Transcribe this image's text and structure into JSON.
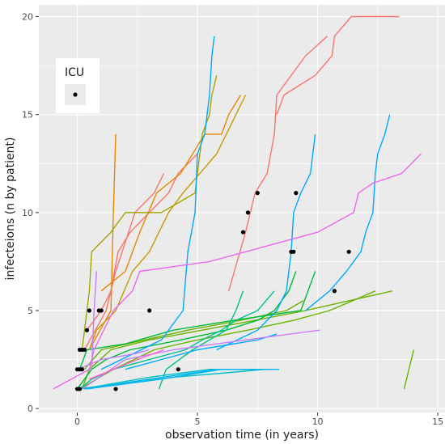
{
  "chart_data": {
    "type": "line",
    "xlabel": "observation time (in years)",
    "ylabel": "infecteions (n by patient)",
    "xlim": [
      -1.6,
      15.3
    ],
    "ylim": [
      -0.2,
      20.6
    ],
    "x_ticks": [
      0,
      5,
      10,
      15
    ],
    "y_ticks": [
      0,
      5,
      10,
      15,
      20
    ],
    "x_tick_labels": [
      "0",
      "5",
      "10",
      "15"
    ],
    "y_tick_labels": [
      "0",
      "5",
      "10",
      "15",
      "20"
    ],
    "grid": true,
    "background": "#ebebeb",
    "legend": {
      "title": "ICU",
      "position": "top-left-inside",
      "marker_color": "#000000"
    },
    "series": [
      {
        "color": "#F8766D",
        "points": [
          [
            8.3,
            15
          ],
          [
            8.6,
            16
          ],
          [
            9.9,
            17
          ],
          [
            10.6,
            18
          ],
          [
            10.7,
            19
          ],
          [
            11.4,
            20
          ],
          [
            13.4,
            20
          ]
        ]
      },
      {
        "color": "#F8766D",
        "points": [
          [
            6.3,
            6
          ],
          [
            7.0,
            9
          ],
          [
            7.4,
            11
          ],
          [
            7.9,
            12
          ],
          [
            8.2,
            14
          ],
          [
            8.3,
            16
          ],
          [
            9.5,
            18
          ],
          [
            10.4,
            19
          ]
        ]
      },
      {
        "color": "#F8766D",
        "points": [
          [
            0.3,
            3
          ],
          [
            1.2,
            5
          ],
          [
            1.6,
            7
          ],
          [
            2.4,
            10
          ],
          [
            3.2,
            11
          ],
          [
            3.6,
            12
          ]
        ]
      },
      {
        "color": "#F8766D",
        "points": [
          [
            0.4,
            4
          ],
          [
            1.0,
            5
          ],
          [
            1.4,
            6
          ],
          [
            1.7,
            8
          ],
          [
            2.2,
            9
          ],
          [
            3.0,
            10
          ],
          [
            3.8,
            11
          ],
          [
            4.2,
            12
          ],
          [
            5.0,
            13
          ]
        ]
      },
      {
        "color": "#E58700",
        "points": [
          [
            0.5,
            3
          ],
          [
            1.4,
            5
          ],
          [
            1.5,
            10
          ],
          [
            1.6,
            14
          ]
        ]
      },
      {
        "color": "#E58700",
        "points": [
          [
            1.0,
            6
          ],
          [
            2.0,
            7
          ],
          [
            2.6,
            9
          ],
          [
            3.3,
            11
          ],
          [
            4.3,
            12
          ],
          [
            4.8,
            13
          ],
          [
            5.3,
            14
          ],
          [
            6.0,
            14
          ],
          [
            6.3,
            15
          ],
          [
            6.8,
            16
          ]
        ]
      },
      {
        "color": "#C99800",
        "points": [
          [
            0.5,
            3
          ],
          [
            0.8,
            4
          ],
          [
            1.6,
            5
          ],
          [
            2.3,
            7
          ],
          [
            3.0,
            8
          ],
          [
            3.8,
            10
          ],
          [
            4.4,
            11
          ],
          [
            5.1,
            12
          ],
          [
            5.8,
            13
          ],
          [
            6.2,
            14
          ],
          [
            7.0,
            16
          ]
        ]
      },
      {
        "color": "#A3A500",
        "points": [
          [
            0.2,
            3
          ],
          [
            0.5,
            6
          ],
          [
            0.6,
            8
          ],
          [
            1.4,
            9
          ],
          [
            2.0,
            10
          ],
          [
            3.5,
            10
          ],
          [
            4.9,
            11
          ],
          [
            5.2,
            14
          ],
          [
            5.5,
            15
          ],
          [
            5.6,
            16
          ],
          [
            5.8,
            17
          ]
        ]
      },
      {
        "color": "#6BB100",
        "points": [
          [
            0.1,
            1
          ],
          [
            1.5,
            2
          ],
          [
            3.2,
            3
          ],
          [
            5.0,
            3.5
          ],
          [
            7.1,
            4
          ],
          [
            9.0,
            4.5
          ],
          [
            10.5,
            5
          ],
          [
            12.4,
            6
          ]
        ]
      },
      {
        "color": "#6BB100",
        "points": [
          [
            0.2,
            1
          ],
          [
            0.5,
            2
          ],
          [
            1.4,
            3
          ],
          [
            3.0,
            3.5
          ],
          [
            5.2,
            4
          ],
          [
            7.4,
            4.5
          ],
          [
            9.5,
            5
          ],
          [
            13.1,
            6
          ]
        ]
      },
      {
        "color": "#6BB100",
        "points": [
          [
            0.3,
            2
          ],
          [
            1.0,
            3
          ],
          [
            2.8,
            3.5
          ],
          [
            4.6,
            4
          ],
          [
            6.8,
            4.5
          ],
          [
            8.7,
            5
          ],
          [
            9.4,
            5.5
          ]
        ]
      },
      {
        "color": "#6BB100",
        "points": [
          [
            13.6,
            1
          ],
          [
            13.8,
            2
          ],
          [
            14.0,
            3
          ]
        ]
      },
      {
        "color": "#00BA38",
        "points": [
          [
            0.1,
            2
          ],
          [
            0.4,
            3
          ],
          [
            2.0,
            3.3
          ],
          [
            4.0,
            4
          ],
          [
            6.5,
            4.5
          ],
          [
            9.3,
            5
          ],
          [
            9.6,
            6
          ],
          [
            9.9,
            7
          ]
        ]
      },
      {
        "color": "#00BA38",
        "points": [
          [
            0.0,
            1
          ],
          [
            0.6,
            2
          ],
          [
            1.2,
            2.5
          ],
          [
            2.2,
            3
          ],
          [
            4.3,
            3.5
          ],
          [
            6.2,
            4
          ],
          [
            7.5,
            4.5
          ],
          [
            8.2,
            5
          ],
          [
            8.8,
            6
          ],
          [
            9.1,
            7
          ]
        ]
      },
      {
        "color": "#00C08B",
        "points": [
          [
            0.1,
            1
          ],
          [
            0.6,
            1.5
          ],
          [
            1.5,
            2
          ],
          [
            3.0,
            2.5
          ],
          [
            4.5,
            3
          ],
          [
            5.2,
            3.5
          ],
          [
            6.0,
            4
          ],
          [
            6.6,
            4.5
          ],
          [
            7.5,
            5
          ],
          [
            8.2,
            6
          ]
        ]
      },
      {
        "color": "#00C08B",
        "points": [
          [
            3.4,
            1
          ],
          [
            3.7,
            2
          ],
          [
            4.8,
            3
          ],
          [
            6.2,
            4
          ],
          [
            6.6,
            5
          ],
          [
            6.9,
            6
          ]
        ]
      },
      {
        "color": "#00BFC4",
        "points": [
          [
            0.0,
            1
          ],
          [
            2.0,
            1.3
          ],
          [
            4.0,
            1.6
          ],
          [
            6.0,
            1.8
          ],
          [
            7.8,
            2
          ]
        ]
      },
      {
        "color": "#00BFC4",
        "points": [
          [
            0.2,
            1
          ],
          [
            3.0,
            1.6
          ],
          [
            5.5,
            2
          ],
          [
            7.8,
            2
          ]
        ]
      },
      {
        "color": "#00B4F0",
        "points": [
          [
            0.3,
            1
          ],
          [
            3.0,
            1.5
          ],
          [
            5.8,
            2
          ],
          [
            8.0,
            2
          ]
        ]
      },
      {
        "color": "#00B4F0",
        "points": [
          [
            0.4,
            1
          ],
          [
            3.5,
            1.5
          ],
          [
            6.0,
            2
          ],
          [
            8.4,
            2
          ]
        ]
      },
      {
        "color": "#00A9FF",
        "points": [
          [
            1.0,
            2
          ],
          [
            3.5,
            3.5
          ],
          [
            4.4,
            5
          ],
          [
            4.6,
            8
          ],
          [
            4.9,
            10
          ],
          [
            5.0,
            13
          ],
          [
            5.3,
            14
          ],
          [
            5.5,
            16
          ],
          [
            5.6,
            18
          ],
          [
            5.7,
            19
          ]
        ]
      },
      {
        "color": "#00A9FF",
        "points": [
          [
            5.8,
            3
          ],
          [
            7.5,
            4
          ],
          [
            8.3,
            5
          ],
          [
            8.7,
            6
          ],
          [
            8.9,
            8
          ],
          [
            9.0,
            10
          ],
          [
            9.3,
            11
          ],
          [
            9.7,
            12
          ],
          [
            9.8,
            13
          ],
          [
            9.9,
            14
          ]
        ]
      },
      {
        "color": "#00A9FF",
        "points": [
          [
            9.5,
            5
          ],
          [
            10.5,
            6
          ],
          [
            11.2,
            7
          ],
          [
            11.8,
            8
          ],
          [
            12.0,
            9
          ],
          [
            12.3,
            10
          ],
          [
            12.4,
            12
          ],
          [
            12.5,
            13
          ],
          [
            12.8,
            14
          ],
          [
            13.0,
            15
          ]
        ]
      },
      {
        "color": "#00A9FF",
        "points": [
          [
            2.0,
            2
          ],
          [
            5.0,
            3
          ],
          [
            7.5,
            3.5
          ],
          [
            8.3,
            3.8
          ]
        ]
      },
      {
        "color": "#C77CFF",
        "points": [
          [
            0.2,
            1
          ],
          [
            2.0,
            2.5
          ],
          [
            4.0,
            3
          ],
          [
            7.0,
            3.5
          ],
          [
            10.1,
            4
          ]
        ]
      },
      {
        "color": "#C77CFF",
        "points": [
          [
            0.0,
            2
          ],
          [
            1.0,
            2.5
          ],
          [
            2.4,
            2.8
          ],
          [
            3.0,
            3
          ]
        ]
      },
      {
        "color": "#C77CFF",
        "points": [
          [
            0.6,
            2
          ],
          [
            0.7,
            5
          ],
          [
            0.8,
            7
          ]
        ]
      },
      {
        "color": "#ED68ED",
        "points": [
          [
            -1.0,
            1
          ],
          [
            0.5,
            2
          ],
          [
            0.7,
            3
          ],
          [
            1.5,
            5
          ],
          [
            2.3,
            6
          ],
          [
            2.6,
            7
          ],
          [
            5.5,
            7.5
          ],
          [
            7.0,
            8
          ],
          [
            8.5,
            8.5
          ],
          [
            10.0,
            9
          ],
          [
            11.5,
            10
          ],
          [
            11.7,
            11
          ],
          [
            12.3,
            11.5
          ],
          [
            13.5,
            12
          ],
          [
            14.3,
            13
          ]
        ]
      },
      {
        "color": "#FF61C3",
        "points": [
          [
            0.5,
            1.5
          ],
          [
            1.5,
            2
          ],
          [
            2.5,
            2.5
          ],
          [
            3.6,
            3
          ]
        ]
      }
    ],
    "icu_points": [
      [
        0.0,
        1
      ],
      [
        0.1,
        1
      ],
      [
        0.0,
        2
      ],
      [
        0.1,
        2
      ],
      [
        0.2,
        2
      ],
      [
        0.1,
        3
      ],
      [
        0.2,
        3
      ],
      [
        0.3,
        3
      ],
      [
        0.4,
        4
      ],
      [
        0.5,
        5
      ],
      [
        0.9,
        5
      ],
      [
        1.0,
        5
      ],
      [
        1.6,
        1
      ],
      [
        3.0,
        5
      ],
      [
        4.2,
        2
      ],
      [
        6.9,
        9
      ],
      [
        7.1,
        10
      ],
      [
        7.5,
        11
      ],
      [
        8.9,
        8
      ],
      [
        9.0,
        8
      ],
      [
        9.1,
        11
      ],
      [
        10.7,
        6
      ],
      [
        11.3,
        8
      ]
    ]
  }
}
